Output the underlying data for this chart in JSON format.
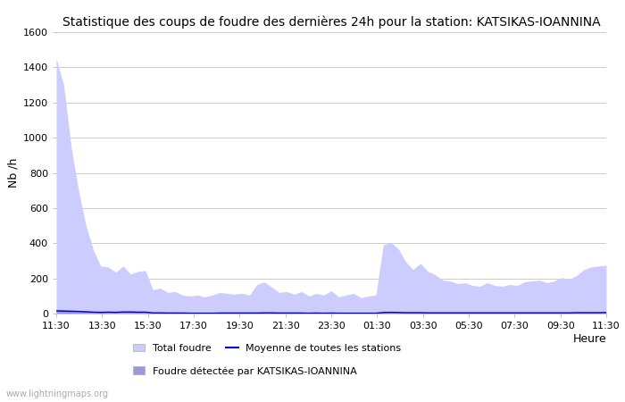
{
  "title": "Statistique des coups de foudre des dernières 24h pour la station: KATSIKAS-IOANNINA",
  "ylabel": "Nb /h",
  "xlabel": "Heure",
  "watermark": "www.lightningmaps.org",
  "ylim": [
    0,
    1600
  ],
  "yticks": [
    0,
    200,
    400,
    600,
    800,
    1000,
    1200,
    1400,
    1600
  ],
  "xtick_labels": [
    "11:30",
    "13:30",
    "15:30",
    "17:30",
    "19:30",
    "21:30",
    "23:30",
    "01:30",
    "03:30",
    "05:30",
    "07:30",
    "09:30",
    "11:30"
  ],
  "legend_total_foudre": "Total foudre",
  "legend_detected": "Foudre détectée par KATSIKAS-IOANNINA",
  "legend_moyenne": "Moyenne de toutes les stations",
  "color_total": "#ccccff",
  "color_detected": "#9999dd",
  "color_moyenne": "#0000cc",
  "background_color": "#ffffff",
  "grid_color": "#cccccc",
  "title_fontsize": 10,
  "total_foudre": [
    1450,
    1300,
    950,
    700,
    500,
    360,
    270,
    265,
    235,
    270,
    225,
    240,
    245,
    135,
    145,
    120,
    125,
    105,
    100,
    105,
    95,
    105,
    120,
    115,
    110,
    115,
    105,
    165,
    180,
    150,
    120,
    125,
    110,
    125,
    100,
    115,
    105,
    130,
    95,
    105,
    115,
    90,
    100,
    105,
    390,
    405,
    370,
    295,
    250,
    285,
    240,
    220,
    190,
    185,
    170,
    175,
    160,
    155,
    175,
    160,
    155,
    165,
    160,
    180,
    185,
    190,
    175,
    185,
    205,
    195,
    215,
    250,
    265,
    270,
    275
  ],
  "foudre_detected": [
    25,
    22,
    20,
    18,
    15,
    12,
    10,
    14,
    12,
    14,
    14,
    12,
    12,
    5,
    5,
    4,
    4,
    4,
    3,
    3,
    3,
    3,
    4,
    4,
    4,
    4,
    4,
    5,
    5,
    5,
    4,
    4,
    4,
    4,
    3,
    4,
    3,
    4,
    3,
    3,
    3,
    3,
    3,
    3,
    10,
    12,
    10,
    8,
    8,
    8,
    7,
    7,
    6,
    6,
    6,
    6,
    5,
    5,
    6,
    5,
    5,
    5,
    5,
    6,
    6,
    6,
    5,
    5,
    6,
    6,
    7,
    8,
    8,
    8,
    9
  ],
  "moyenne": [
    15,
    14,
    13,
    12,
    10,
    8,
    7,
    8,
    7,
    9,
    9,
    8,
    8,
    4,
    4,
    3,
    3,
    3,
    2,
    2,
    2,
    2,
    3,
    3,
    3,
    3,
    3,
    3,
    4,
    4,
    3,
    3,
    3,
    3,
    2,
    3,
    2,
    3,
    2,
    2,
    2,
    2,
    2,
    2,
    6,
    7,
    6,
    5,
    5,
    5,
    4,
    4,
    4,
    4,
    4,
    4,
    4,
    4,
    4,
    4,
    4,
    4,
    4,
    4,
    4,
    4,
    4,
    4,
    4,
    4,
    5,
    5,
    5,
    5,
    6
  ]
}
